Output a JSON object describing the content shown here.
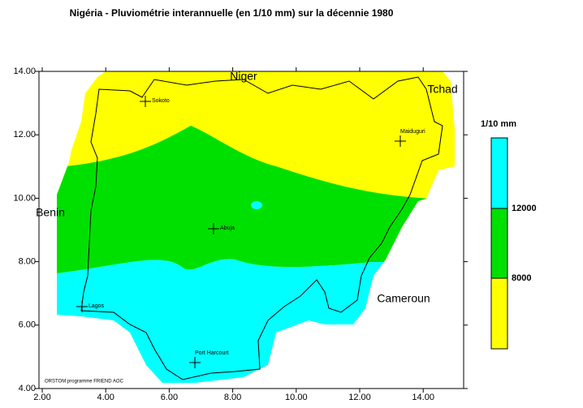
{
  "title": "Nigéria - Pluviométrie interannuelle (en 1/10 mm) sur la décennie 1980",
  "axes": {
    "xticks": [
      {
        "value": 2,
        "label": "2.00"
      },
      {
        "value": 4,
        "label": "4.00"
      },
      {
        "value": 6,
        "label": "6.00"
      },
      {
        "value": 8,
        "label": "8.00"
      },
      {
        "value": 10,
        "label": "10.00"
      },
      {
        "value": 12,
        "label": "12.00"
      },
      {
        "value": 14,
        "label": "14.00"
      }
    ],
    "yticks": [
      {
        "value": 4,
        "label": "4.00"
      },
      {
        "value": 6,
        "label": "6.00"
      },
      {
        "value": 8,
        "label": "8.00"
      },
      {
        "value": 10,
        "label": "10.00"
      },
      {
        "value": 12,
        "label": "12.00"
      },
      {
        "value": 14,
        "label": "14.00"
      }
    ]
  },
  "countries": [
    "Niger",
    "Tchad",
    "Benin",
    "Cameroun"
  ],
  "cities": [
    "Sokoto",
    "Maiduguri",
    "Abuja",
    "Lagos",
    "Port Harcourt"
  ],
  "legend": {
    "title": "1/10 mm",
    "labels": [
      "12000",
      "8000"
    ],
    "colors": [
      "#00ffff",
      "#00e000",
      "#ffff00"
    ]
  },
  "credit": "ORSTOM programme FRIEND AOC"
}
